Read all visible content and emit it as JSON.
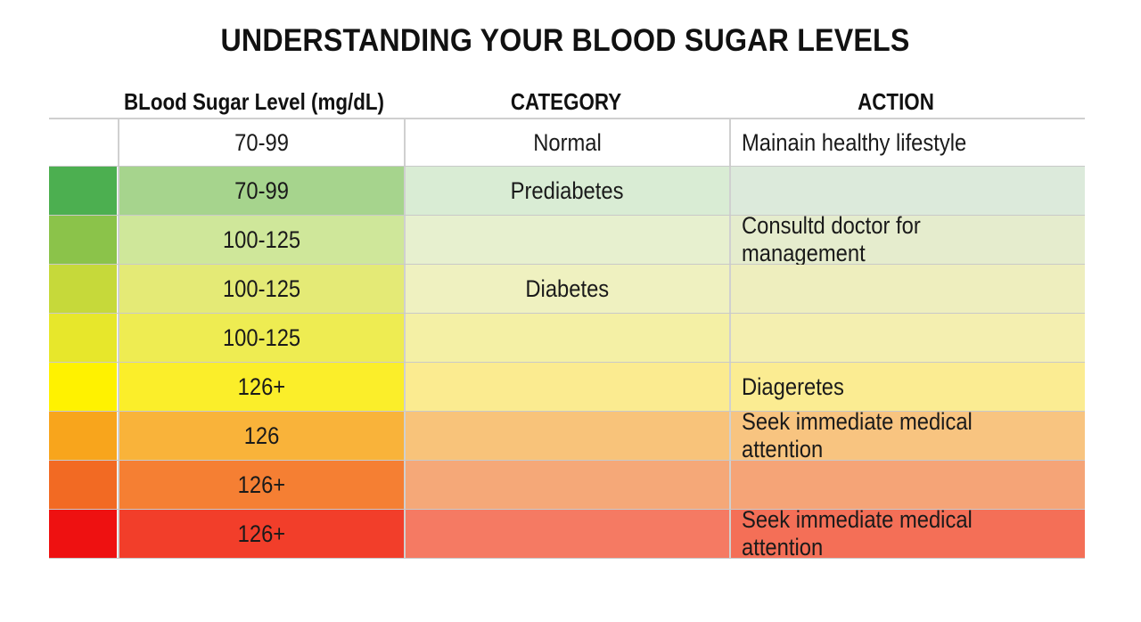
{
  "title": "UNDERSTANDING YOUR BLOOD SUGAR LEVELS",
  "headers": {
    "level": "BLood Sugar Level (mg/dL)",
    "category": "CATEGORY",
    "action": "ACTION"
  },
  "rows": [
    {
      "level": "70-99",
      "category": "Normal",
      "action": "Mainain healthy lifestyle",
      "swatch": "#ffffff",
      "level_bg": "#ffffff",
      "cat_bg": "#ffffff",
      "action_bg": "#ffffff"
    },
    {
      "level": "70-99",
      "category": "Prediabetes",
      "action": "",
      "swatch": "#4caf50",
      "level_bg": "#a6d48d",
      "cat_bg": "#d9ecd4",
      "action_bg": "#dceadb"
    },
    {
      "level": "100-125",
      "category": "",
      "action": "Consultd doctor for management",
      "swatch": "#8bc34a",
      "level_bg": "#cfe79a",
      "cat_bg": "#e7f0cf",
      "action_bg": "#e5eccd"
    },
    {
      "level": "100-125",
      "category": "Diabetes",
      "action": "",
      "swatch": "#c6d93a",
      "level_bg": "#e4ea76",
      "cat_bg": "#eff1c0",
      "action_bg": "#eeeebe"
    },
    {
      "level": "100-125",
      "category": "",
      "action": "",
      "swatch": "#e7e72b",
      "level_bg": "#eeec52",
      "cat_bg": "#f4f0a5",
      "action_bg": "#f4efb0"
    },
    {
      "level": "126+",
      "category": "",
      "action": "Diageretes",
      "swatch": "#fff200",
      "level_bg": "#fbee2a",
      "cat_bg": "#fbeb90",
      "action_bg": "#fbec92"
    },
    {
      "level": "126",
      "category": "",
      "action": "Seek immediate medical attention",
      "swatch": "#f8a51c",
      "level_bg": "#f9b33a",
      "cat_bg": "#f8c37a",
      "action_bg": "#f8c480"
    },
    {
      "level": "126+",
      "category": "",
      "action": "",
      "swatch": "#f26a23",
      "level_bg": "#f57f33",
      "cat_bg": "#f5a878",
      "action_bg": "#f5a477"
    },
    {
      "level": "126+",
      "category": "",
      "action": "Seek immediate medical attention",
      "swatch": "#ee1111",
      "level_bg": "#f23e2a",
      "cat_bg": "#f57a63",
      "action_bg": "#f46f57"
    }
  ]
}
